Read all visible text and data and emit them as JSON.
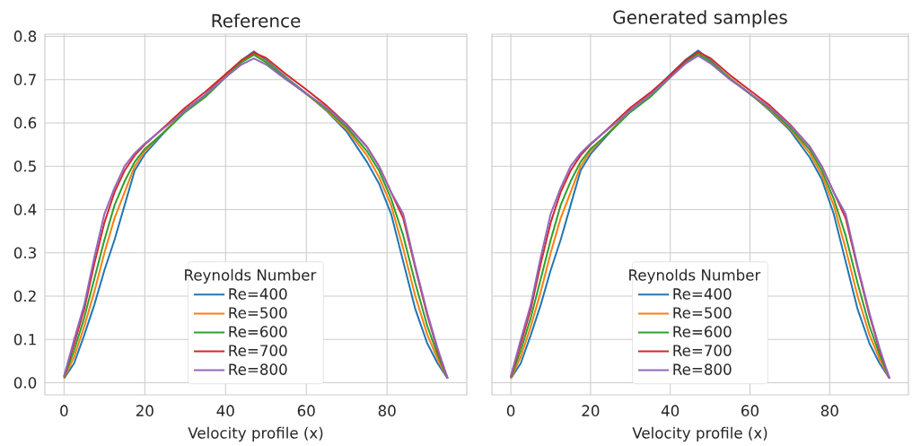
{
  "chart_data": [
    {
      "type": "line",
      "title": "Reference",
      "xlabel": "Velocity profile (x)",
      "legend_title": "Reynolds Number",
      "legend": "bottom",
      "grid": true,
      "marker": "none",
      "x": [
        0,
        2.5,
        5,
        7.5,
        10,
        12.5,
        15,
        17.5,
        20,
        25,
        30,
        35,
        40,
        44,
        47,
        50,
        55,
        60,
        65,
        70,
        75,
        78,
        81,
        84,
        87,
        90,
        92.5,
        95
      ],
      "xlim": [
        -4.75,
        99.75
      ],
      "xticks": [
        0,
        20,
        40,
        60,
        80
      ],
      "ylim": [
        -0.028,
        0.805
      ],
      "yticks": [
        {
          "value": 0,
          "label": "0.0"
        },
        0.1,
        0.2,
        0.3,
        0.4,
        0.5,
        0.6,
        0.7,
        0.8
      ],
      "series": [
        {
          "name": "Re=400",
          "color": "#1f77b4",
          "values": [
            0.01,
            0.045,
            0.11,
            0.18,
            0.26,
            0.33,
            0.41,
            0.49,
            0.528,
            0.58,
            0.63,
            0.665,
            0.712,
            0.745,
            0.765,
            0.745,
            0.705,
            0.668,
            0.628,
            0.58,
            0.51,
            0.46,
            0.39,
            0.28,
            0.17,
            0.09,
            0.045,
            0.01
          ]
        },
        {
          "name": "Re=500",
          "color": "#ff7f0e",
          "values": [
            0.01,
            0.06,
            0.13,
            0.21,
            0.3,
            0.38,
            0.44,
            0.5,
            0.535,
            0.582,
            0.628,
            0.663,
            0.708,
            0.742,
            0.76,
            0.742,
            0.703,
            0.667,
            0.63,
            0.585,
            0.525,
            0.475,
            0.41,
            0.31,
            0.2,
            0.11,
            0.055,
            0.01
          ]
        },
        {
          "name": "Re=600",
          "color": "#2ca02c",
          "values": [
            0.012,
            0.075,
            0.15,
            0.24,
            0.33,
            0.41,
            0.465,
            0.51,
            0.54,
            0.58,
            0.625,
            0.66,
            0.705,
            0.74,
            0.757,
            0.74,
            0.702,
            0.667,
            0.632,
            0.59,
            0.535,
            0.49,
            0.425,
            0.34,
            0.23,
            0.13,
            0.065,
            0.01
          ]
        },
        {
          "name": "Re=700",
          "color": "#d62728",
          "values": [
            0.014,
            0.09,
            0.17,
            0.275,
            0.37,
            0.44,
            0.49,
            0.525,
            0.55,
            0.592,
            0.635,
            0.672,
            0.712,
            0.745,
            0.762,
            0.75,
            0.712,
            0.677,
            0.64,
            0.597,
            0.545,
            0.5,
            0.44,
            0.38,
            0.265,
            0.155,
            0.075,
            0.01
          ]
        },
        {
          "name": "Re=800",
          "color": "#9467bd",
          "values": [
            0.015,
            0.1,
            0.18,
            0.29,
            0.39,
            0.45,
            0.5,
            0.53,
            0.552,
            0.59,
            0.628,
            0.665,
            0.705,
            0.735,
            0.749,
            0.735,
            0.7,
            0.668,
            0.635,
            0.595,
            0.545,
            0.5,
            0.44,
            0.39,
            0.27,
            0.16,
            0.08,
            0.01
          ]
        }
      ]
    },
    {
      "type": "line",
      "title": "Generated samples",
      "xlabel": "Velocity profile (x)",
      "legend_title": "Reynolds Number",
      "legend": "bottom",
      "grid": true,
      "marker": "none",
      "tick_labels": "x",
      "x": [
        0,
        2.5,
        5,
        7.5,
        10,
        12.5,
        15,
        17.5,
        20,
        25,
        30,
        35,
        40,
        44,
        47,
        50,
        55,
        60,
        65,
        70,
        75,
        78,
        81,
        84,
        87,
        90,
        92.5,
        95
      ],
      "xlim": [
        -4.75,
        99.75
      ],
      "xticks": [
        0,
        20,
        40,
        60,
        80
      ],
      "ylim": [
        -0.028,
        0.805
      ],
      "yticks": [
        0,
        0.1,
        0.2,
        0.3,
        0.4,
        0.5,
        0.6,
        0.7,
        0.8
      ],
      "series": [
        {
          "name": "Re=400",
          "color": "#1f77b4",
          "values": [
            0.01,
            0.045,
            0.11,
            0.18,
            0.26,
            0.33,
            0.41,
            0.49,
            0.528,
            0.58,
            0.63,
            0.665,
            0.712,
            0.747,
            0.767,
            0.745,
            0.703,
            0.668,
            0.628,
            0.583,
            0.52,
            0.47,
            0.39,
            0.28,
            0.17,
            0.09,
            0.045,
            0.01
          ]
        },
        {
          "name": "Re=500",
          "color": "#ff7f0e",
          "values": [
            0.01,
            0.06,
            0.13,
            0.21,
            0.3,
            0.38,
            0.44,
            0.5,
            0.535,
            0.582,
            0.628,
            0.663,
            0.708,
            0.744,
            0.761,
            0.742,
            0.703,
            0.667,
            0.63,
            0.587,
            0.53,
            0.48,
            0.41,
            0.31,
            0.2,
            0.11,
            0.055,
            0.01
          ]
        },
        {
          "name": "Re=600",
          "color": "#2ca02c",
          "values": [
            0.012,
            0.075,
            0.15,
            0.24,
            0.33,
            0.41,
            0.465,
            0.51,
            0.54,
            0.58,
            0.625,
            0.66,
            0.705,
            0.742,
            0.759,
            0.742,
            0.702,
            0.667,
            0.632,
            0.59,
            0.538,
            0.49,
            0.425,
            0.34,
            0.23,
            0.13,
            0.065,
            0.01
          ]
        },
        {
          "name": "Re=700",
          "color": "#d62728",
          "values": [
            0.014,
            0.09,
            0.17,
            0.275,
            0.37,
            0.44,
            0.49,
            0.525,
            0.55,
            0.592,
            0.635,
            0.67,
            0.71,
            0.745,
            0.764,
            0.75,
            0.71,
            0.675,
            0.64,
            0.597,
            0.545,
            0.5,
            0.44,
            0.38,
            0.265,
            0.155,
            0.075,
            0.01
          ]
        },
        {
          "name": "Re=800",
          "color": "#9467bd",
          "values": [
            0.015,
            0.1,
            0.18,
            0.29,
            0.39,
            0.45,
            0.5,
            0.53,
            0.552,
            0.59,
            0.628,
            0.665,
            0.705,
            0.738,
            0.755,
            0.738,
            0.7,
            0.668,
            0.635,
            0.595,
            0.545,
            0.5,
            0.44,
            0.39,
            0.27,
            0.16,
            0.08,
            0.01
          ]
        }
      ]
    }
  ]
}
